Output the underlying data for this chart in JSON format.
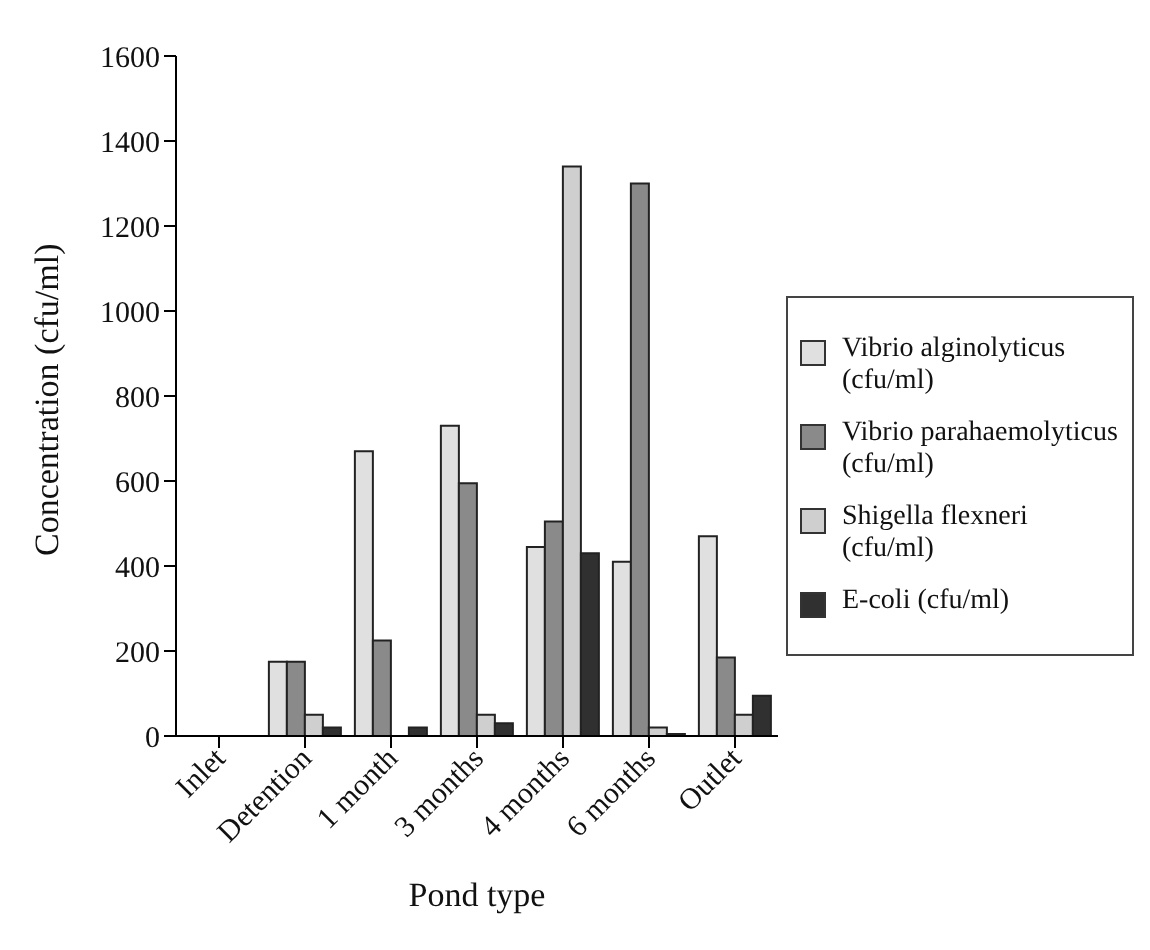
{
  "chart_data": {
    "type": "bar",
    "xlabel": "Pond type",
    "ylabel": "Concentration (cfu/ml)",
    "categories": [
      "Inlet",
      "Detention",
      "1 month",
      "3 months",
      "4 months",
      "6 months",
      "Outlet"
    ],
    "series": [
      {
        "name": "Vibrio alginolyticus (cfu/ml)",
        "color": "#e0e0e0",
        "values": [
          0,
          175,
          670,
          730,
          445,
          410,
          470
        ]
      },
      {
        "name": "Vibrio parahaemolyticus (cfu/ml)",
        "color": "#8a8a8a",
        "values": [
          0,
          175,
          225,
          595,
          505,
          1300,
          185
        ]
      },
      {
        "name": "Shigella flexneri (cfu/ml)",
        "color": "#cfcfcf",
        "values": [
          0,
          50,
          0,
          50,
          1340,
          20,
          50
        ]
      },
      {
        "name": "E-coli (cfu/ml)",
        "color": "#303030",
        "values": [
          0,
          20,
          20,
          30,
          430,
          5,
          95
        ]
      }
    ],
    "ylim": [
      0,
      1600
    ],
    "yticks": [
      0,
      200,
      400,
      600,
      800,
      1000,
      1200,
      1400,
      1600
    ],
    "grid": false,
    "legend": "right"
  }
}
